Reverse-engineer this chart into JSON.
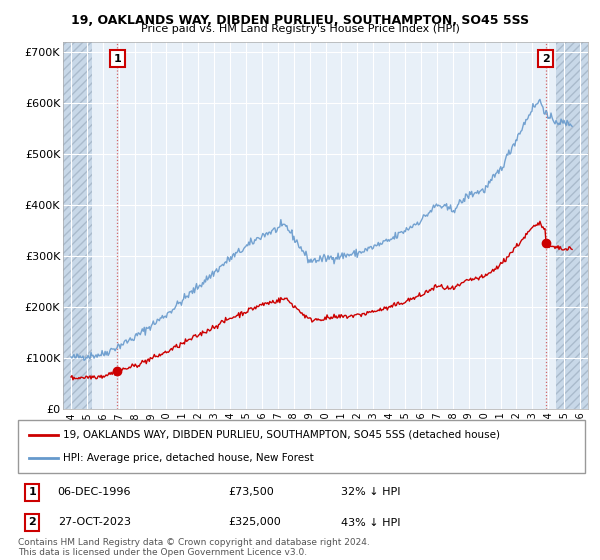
{
  "title_line1": "19, OAKLANDS WAY, DIBDEN PURLIEU, SOUTHAMPTON, SO45 5SS",
  "title_line2": "Price paid vs. HM Land Registry's House Price Index (HPI)",
  "legend_label1": "19, OAKLANDS WAY, DIBDEN PURLIEU, SOUTHAMPTON, SO45 5SS (detached house)",
  "legend_label2": "HPI: Average price, detached house, New Forest",
  "annotation1_date": "06-DEC-1996",
  "annotation1_price": "£73,500",
  "annotation1_hpi": "32% ↓ HPI",
  "annotation2_date": "27-OCT-2023",
  "annotation2_price": "£325,000",
  "annotation2_hpi": "43% ↓ HPI",
  "footnote": "Contains HM Land Registry data © Crown copyright and database right 2024.\nThis data is licensed under the Open Government Licence v3.0.",
  "price_paid_color": "#cc0000",
  "hpi_line_color": "#6699cc",
  "chart_bg_color": "#e8f0f8",
  "hatch_color": "#c8d8e8",
  "grid_color": "#ffffff",
  "marker1_x": 1996.92,
  "marker1_y": 73500,
  "marker2_x": 2023.83,
  "marker2_y": 325000,
  "xmin": 1993.5,
  "xmax": 2026.5,
  "ymin": 0,
  "ymax": 720000,
  "yticks": [
    0,
    100000,
    200000,
    300000,
    400000,
    500000,
    600000,
    700000
  ],
  "ytick_labels": [
    "£0",
    "£100K",
    "£200K",
    "£300K",
    "£400K",
    "£500K",
    "£600K",
    "£700K"
  ],
  "xtick_years": [
    1994,
    1995,
    1996,
    1997,
    1998,
    1999,
    2000,
    2001,
    2002,
    2003,
    2004,
    2005,
    2006,
    2007,
    2008,
    2009,
    2010,
    2011,
    2012,
    2013,
    2014,
    2015,
    2016,
    2017,
    2018,
    2019,
    2020,
    2021,
    2022,
    2023,
    2024,
    2025,
    2026
  ],
  "hatch_left_xmin": 1993.5,
  "hatch_left_xmax": 1995.3,
  "hatch_right_xmin": 2024.5,
  "hatch_right_xmax": 2026.5,
  "data_xmin": 1994.0,
  "data_xmax": 2025.5
}
